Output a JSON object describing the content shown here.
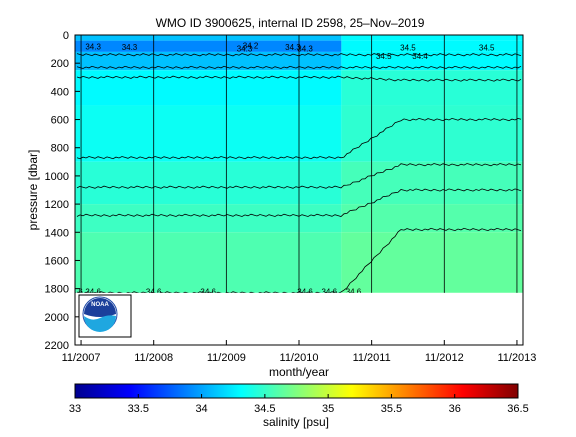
{
  "chart_data": {
    "type": "heatmap",
    "title": "WMO ID 3900625, internal ID 2598, 25–Nov–2019",
    "xlabel": "month/year",
    "ylabel": "pressure [dbar]",
    "x_ticks": [
      "11/2007",
      "11/2008",
      "11/2009",
      "11/2010",
      "11/2011",
      "11/2012",
      "11/2013"
    ],
    "y_ticks": [
      0,
      200,
      400,
      600,
      800,
      1000,
      1200,
      1400,
      1600,
      1800,
      2000,
      2200
    ],
    "ylim": [
      2200,
      0
    ],
    "xlim": [
      "2007-10",
      "2013-12"
    ],
    "grid": "vertical lines at year marks",
    "colorbar": {
      "label": "salinity [psu]",
      "ticks": [
        33,
        33.5,
        34,
        34.5,
        35,
        35.5,
        36,
        36.5
      ],
      "range": [
        33,
        36.5
      ],
      "colormap": "jet"
    },
    "contour_labels": [
      "34.3",
      "34.3",
      "34.2",
      "34.3",
      "34.3",
      "34.3",
      "34.5",
      "34.5",
      "34.5",
      "34.4",
      "34.6",
      "34.6",
      "34.6",
      "34.6",
      "34.6",
      "34.6",
      "34.6"
    ],
    "bands": [
      {
        "pmin": 0,
        "pmax": 40,
        "left": 34.1,
        "right": 34.3
      },
      {
        "pmin": 40,
        "pmax": 120,
        "left": 33.9,
        "right": 34.3
      },
      {
        "pmin": 120,
        "pmax": 250,
        "left": 34.1,
        "right": 34.3
      },
      {
        "pmin": 250,
        "pmax": 500,
        "left": 34.3,
        "right": 34.45
      },
      {
        "pmin": 500,
        "pmax": 900,
        "left": 34.35,
        "right": 34.47
      },
      {
        "pmin": 900,
        "pmax": 1200,
        "left": 34.45,
        "right": 34.55
      },
      {
        "pmin": 1200,
        "pmax": 1400,
        "left": 34.52,
        "right": 34.6
      },
      {
        "pmin": 1400,
        "pmax": 1830,
        "left": 34.58,
        "right": 34.65
      }
    ],
    "data_bottom_pressure": 1830
  },
  "logo": {
    "text": "NOAA"
  }
}
